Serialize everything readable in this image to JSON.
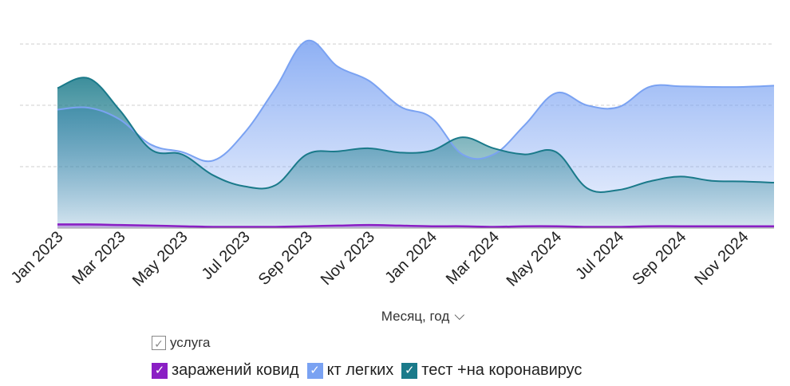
{
  "colors": {
    "kovid": "#8a1fc4",
    "kt": "#7aa2f2",
    "test": "#1a7a8a",
    "grid": "#cfcfcf",
    "axis": "#999999"
  },
  "legend": {
    "title": "услуга",
    "check": "✓",
    "items": [
      {
        "label": "заражений ковид",
        "color": "#8a1fc4"
      },
      {
        "label": "кт легких",
        "color": "#7aa2f2"
      },
      {
        "label": "тест +на коронавирус",
        "color": "#1a7a8a"
      }
    ]
  },
  "xaxis": {
    "title": "Месяц, год",
    "chevron": "⌵"
  },
  "chart_data": {
    "type": "area",
    "x": [
      "2023-01",
      "2023-02",
      "2023-03",
      "2023-04",
      "2023-05",
      "2023-06",
      "2023-07",
      "2023-08",
      "2023-09",
      "2023-10",
      "2023-11",
      "2023-12",
      "2024-01",
      "2024-02",
      "2024-03",
      "2024-04",
      "2024-05",
      "2024-06",
      "2024-07",
      "2024-08",
      "2024-09",
      "2024-10",
      "2024-11",
      "2024-12"
    ],
    "tick_labels": [
      "Jan 2023",
      "Mar 2023",
      "May 2023",
      "Jul 2023",
      "Sep 2023",
      "Nov 2023",
      "Jan 2024",
      "Mar 2024",
      "May 2024",
      "Jul 2024",
      "Sep 2024",
      "Nov 2024"
    ],
    "ylim": [
      0,
      330
    ],
    "grid": true,
    "legend_position": "bottom",
    "series": [
      {
        "name": "кт легких",
        "values": [
          193,
          196,
          177,
          136,
          124,
          110,
          155,
          228,
          305,
          263,
          240,
          198,
          180,
          120,
          120,
          168,
          220,
          200,
          197,
          230,
          231,
          230,
          230,
          232
        ]
      },
      {
        "name": "тест +на коронавирус",
        "values": [
          228,
          244,
          192,
          128,
          120,
          86,
          68,
          70,
          120,
          125,
          130,
          123,
          126,
          148,
          130,
          120,
          124,
          65,
          62,
          76,
          84,
          77,
          76,
          74
        ]
      },
      {
        "name": "заражений ковид",
        "values": [
          6,
          6,
          5,
          4,
          3,
          2,
          2,
          2,
          3,
          4,
          5,
          4,
          3,
          3,
          2,
          3,
          3,
          2,
          2,
          3,
          3,
          3,
          3,
          3
        ]
      }
    ]
  }
}
